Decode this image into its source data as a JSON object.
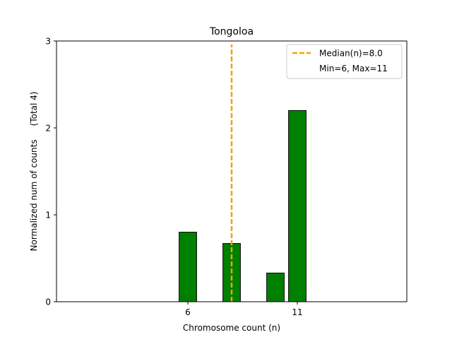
{
  "chart_data": {
    "type": "bar",
    "title": "Tongoloa",
    "xlabel": "Chromosome count (n)",
    "ylabel": "Normalized num of counts     (Total 4)",
    "xlim": [
      0,
      16
    ],
    "ylim": [
      0,
      3
    ],
    "xticks": [
      6,
      11
    ],
    "yticks": [
      0,
      1,
      2,
      3
    ],
    "bar_width": 0.8,
    "bars": [
      {
        "x": 6,
        "value": 0.8
      },
      {
        "x": 8,
        "value": 0.67
      },
      {
        "x": 10,
        "value": 0.33
      },
      {
        "x": 11,
        "value": 2.2
      }
    ],
    "median": 8.0,
    "legend": {
      "position": "top-right",
      "entries": [
        "Median(n)=8.0",
        "Min=6, Max=11"
      ]
    },
    "colors": {
      "bar_fill": "#008000",
      "bar_edge": "#000000",
      "median_line": "#f0a30a"
    }
  }
}
